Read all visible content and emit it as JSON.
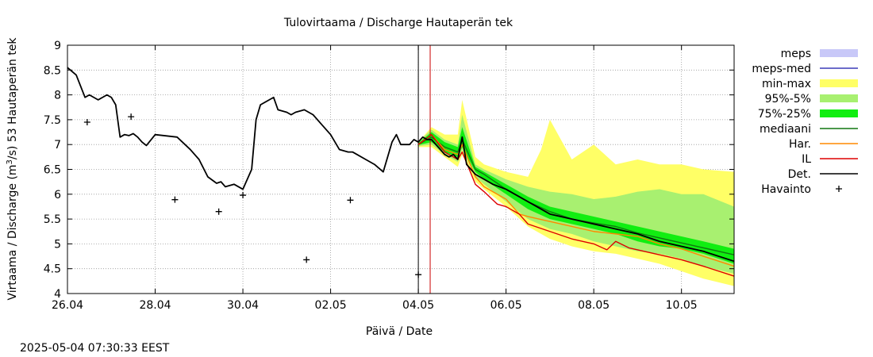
{
  "timestamp": "2025-05-04 07:30:33 EEST",
  "chart_data": {
    "type": "line",
    "title": "Tulovirtaama / Discharge  Hautaperän tek",
    "xlabel": "Päivä / Date",
    "ylabel": "Virtaama / Discharge (m³/s)  53 Hautaperän tek",
    "ylabel_parts": {
      "pre": "Virtaama / Discharge (m",
      "sup": "3",
      "post": "/s)  53 Hautaperän tek"
    },
    "xlim": [
      0,
      15.2
    ],
    "ylim": [
      4,
      9
    ],
    "x_unit": "days since 26.04",
    "grid": true,
    "x_ticks": [
      {
        "x": 0,
        "label": "26.04"
      },
      {
        "x": 2,
        "label": "28.04"
      },
      {
        "x": 4,
        "label": "30.04"
      },
      {
        "x": 6,
        "label": "02.05"
      },
      {
        "x": 8,
        "label": "04.05"
      },
      {
        "x": 10,
        "label": "06.05"
      },
      {
        "x": 12,
        "label": "08.05"
      },
      {
        "x": 14,
        "label": "10.05"
      }
    ],
    "y_ticks": [
      {
        "y": 4,
        "label": "4"
      },
      {
        "y": 4.5,
        "label": "4.5"
      },
      {
        "y": 5,
        "label": "5"
      },
      {
        "y": 5.5,
        "label": "5.5"
      },
      {
        "y": 6,
        "label": "6"
      },
      {
        "y": 6.5,
        "label": "6.5"
      },
      {
        "y": 7,
        "label": "7"
      },
      {
        "y": 7.5,
        "label": "7.5"
      },
      {
        "y": 8,
        "label": "8"
      },
      {
        "y": 8.5,
        "label": "8.5"
      },
      {
        "y": 9,
        "label": "9"
      }
    ],
    "vlines": [
      {
        "x": 8.0,
        "color": "#000000",
        "name": "forecast-start-line"
      },
      {
        "x": 8.27,
        "color": "#cc0000",
        "name": "now-line"
      }
    ],
    "legend": [
      {
        "label": "meps",
        "kind": "box",
        "color": "#c8c8f8"
      },
      {
        "label": "meps-med",
        "kind": "line",
        "color": "#3b3bb8"
      },
      {
        "label": "min-max",
        "kind": "box",
        "color": "#ffff66"
      },
      {
        "label": "95%-5%",
        "kind": "box",
        "color": "#a8f070"
      },
      {
        "label": "75%-25%",
        "kind": "box",
        "color": "#11ee11"
      },
      {
        "label": "mediaani",
        "kind": "line",
        "color": "#117711"
      },
      {
        "label": "Har.",
        "kind": "line",
        "color": "#ff8800"
      },
      {
        "label": "IL",
        "kind": "line",
        "color": "#dd0000"
      },
      {
        "label": "Det.",
        "kind": "line",
        "color": "#000000"
      },
      {
        "label": "Havainto",
        "kind": "plus",
        "color": "#000000"
      }
    ],
    "bands": [
      {
        "name": "min-max",
        "color": "#ffff66",
        "x": [
          8.0,
          8.3,
          8.6,
          8.9,
          9.0,
          9.3,
          9.5,
          10.0,
          10.5,
          10.8,
          11.0,
          11.5,
          12.0,
          12.5,
          13.0,
          13.5,
          14.0,
          14.5,
          15.2
        ],
        "upper": [
          7.05,
          7.35,
          7.2,
          7.2,
          7.9,
          6.75,
          6.6,
          6.45,
          6.35,
          6.9,
          7.5,
          6.7,
          7.0,
          6.6,
          6.7,
          6.6,
          6.6,
          6.5,
          6.45
        ],
        "lower": [
          6.95,
          6.95,
          6.75,
          6.55,
          6.8,
          6.25,
          6.1,
          5.75,
          5.35,
          5.2,
          5.1,
          4.95,
          4.85,
          4.8,
          4.7,
          4.6,
          4.45,
          4.3,
          4.15
        ]
      },
      {
        "name": "95%-5%",
        "color": "#a8f070",
        "x": [
          8.0,
          8.3,
          8.6,
          8.9,
          9.0,
          9.3,
          9.5,
          10.0,
          10.5,
          11.0,
          11.5,
          12.0,
          12.5,
          13.0,
          13.5,
          14.0,
          14.5,
          15.2
        ],
        "upper": [
          7.05,
          7.3,
          7.1,
          7.0,
          7.6,
          6.6,
          6.5,
          6.3,
          6.15,
          6.05,
          6.0,
          5.9,
          5.95,
          6.05,
          6.1,
          6.0,
          6.0,
          5.75
        ],
        "lower": [
          6.97,
          7.0,
          6.8,
          6.65,
          6.9,
          6.35,
          6.2,
          5.85,
          5.5,
          5.3,
          5.2,
          5.05,
          4.95,
          4.85,
          4.8,
          4.7,
          4.55,
          4.4
        ]
      },
      {
        "name": "75%-25%",
        "color": "#11ee11",
        "x": [
          8.0,
          8.3,
          8.6,
          8.9,
          9.0,
          9.3,
          9.5,
          10.0,
          10.5,
          11.0,
          11.5,
          12.0,
          12.5,
          13.0,
          13.5,
          14.0,
          14.5,
          15.2
        ],
        "upper": [
          7.03,
          7.25,
          7.05,
          6.95,
          7.35,
          6.55,
          6.45,
          6.2,
          5.95,
          5.75,
          5.65,
          5.55,
          5.45,
          5.35,
          5.25,
          5.15,
          5.05,
          4.9
        ],
        "lower": [
          6.99,
          7.05,
          6.85,
          6.75,
          6.95,
          6.45,
          6.3,
          6.0,
          5.7,
          5.5,
          5.4,
          5.3,
          5.2,
          5.05,
          4.95,
          4.9,
          4.8,
          4.6
        ]
      }
    ],
    "series": [
      {
        "name": "mediaani",
        "color": "#117711",
        "width": 1.4,
        "x": [
          8.0,
          8.3,
          8.6,
          8.9,
          9.0,
          9.3,
          9.5,
          10.0,
          10.5,
          11.0,
          11.5,
          12.0,
          12.5,
          13.0,
          13.5,
          14.0,
          14.5,
          15.2
        ],
        "y": [
          7.0,
          7.15,
          6.95,
          6.85,
          7.1,
          6.5,
          6.4,
          6.1,
          5.85,
          5.65,
          5.5,
          5.42,
          5.35,
          5.22,
          5.12,
          5.02,
          4.92,
          4.78
        ]
      },
      {
        "name": "Har.",
        "color": "#ff8800",
        "width": 1.4,
        "x": [
          8.0,
          8.3,
          8.6,
          8.9,
          9.0,
          9.3,
          9.5,
          10.0,
          10.3,
          10.5,
          11.0,
          11.5,
          12.0,
          12.5,
          13.0,
          13.5,
          14.0,
          14.5,
          15.2
        ],
        "y": [
          7.0,
          7.2,
          6.9,
          6.8,
          7.0,
          6.35,
          6.15,
          5.9,
          5.6,
          5.55,
          5.45,
          5.35,
          5.25,
          5.2,
          5.15,
          5.0,
          4.9,
          4.75,
          4.55
        ]
      },
      {
        "name": "IL",
        "color": "#dd0000",
        "width": 1.4,
        "x": [
          8.0,
          8.3,
          8.6,
          8.9,
          9.0,
          9.3,
          9.5,
          9.8,
          10.0,
          10.3,
          10.5,
          11.0,
          11.5,
          12.0,
          12.3,
          12.5,
          12.8,
          13.0,
          13.5,
          14.0,
          14.5,
          15.2
        ],
        "y": [
          7.0,
          7.2,
          6.85,
          6.7,
          6.85,
          6.2,
          6.05,
          5.8,
          5.75,
          5.6,
          5.4,
          5.25,
          5.1,
          5.0,
          4.88,
          5.05,
          4.92,
          4.88,
          4.78,
          4.68,
          4.55,
          4.35
        ]
      },
      {
        "name": "Det.",
        "color": "#000000",
        "width": 1.8,
        "x": [
          0.0,
          0.2,
          0.4,
          0.5,
          0.7,
          0.9,
          1.0,
          1.1,
          1.2,
          1.3,
          1.4,
          1.5,
          1.6,
          1.7,
          1.8,
          2.0,
          2.2,
          2.5,
          2.8,
          3.0,
          3.2,
          3.4,
          3.5,
          3.6,
          3.8,
          4.0,
          4.2,
          4.3,
          4.4,
          4.6,
          4.7,
          4.8,
          5.0,
          5.1,
          5.2,
          5.4,
          5.6,
          5.8,
          6.0,
          6.2,
          6.4,
          6.5,
          6.6,
          6.8,
          7.0,
          7.2,
          7.4,
          7.5,
          7.6,
          7.8,
          7.9,
          8.0,
          8.1,
          8.2,
          8.3,
          8.4,
          8.5,
          8.6,
          8.7,
          8.8,
          8.9,
          9.0,
          9.1,
          9.3,
          9.5,
          9.7,
          10.0,
          10.5,
          11.0,
          11.5,
          12.0,
          12.5,
          13.0,
          13.5,
          14.0,
          14.5,
          15.2
        ],
        "y": [
          8.55,
          8.4,
          7.95,
          8.0,
          7.9,
          8.0,
          7.95,
          7.8,
          7.15,
          7.2,
          7.18,
          7.22,
          7.15,
          7.05,
          6.98,
          7.2,
          7.18,
          7.15,
          6.9,
          6.7,
          6.35,
          6.22,
          6.25,
          6.15,
          6.2,
          6.1,
          6.5,
          7.5,
          7.8,
          7.9,
          7.95,
          7.7,
          7.65,
          7.6,
          7.65,
          7.7,
          7.6,
          7.4,
          7.2,
          6.9,
          6.85,
          6.85,
          6.8,
          6.7,
          6.6,
          6.45,
          7.05,
          7.2,
          7.0,
          7.0,
          7.1,
          7.05,
          7.15,
          7.1,
          7.1,
          7.0,
          6.9,
          6.8,
          6.75,
          6.8,
          6.7,
          7.15,
          6.6,
          6.4,
          6.3,
          6.2,
          6.1,
          5.85,
          5.6,
          5.5,
          5.4,
          5.3,
          5.2,
          5.05,
          4.95,
          4.85,
          4.65
        ]
      }
    ],
    "observations": [
      {
        "x": 0.45,
        "y": 7.45
      },
      {
        "x": 1.45,
        "y": 7.56
      },
      {
        "x": 2.45,
        "y": 5.89
      },
      {
        "x": 3.45,
        "y": 5.65
      },
      {
        "x": 4.0,
        "y": 5.98
      },
      {
        "x": 5.45,
        "y": 4.68
      },
      {
        "x": 6.45,
        "y": 5.88
      },
      {
        "x": 8.0,
        "y": 4.38
      }
    ]
  }
}
